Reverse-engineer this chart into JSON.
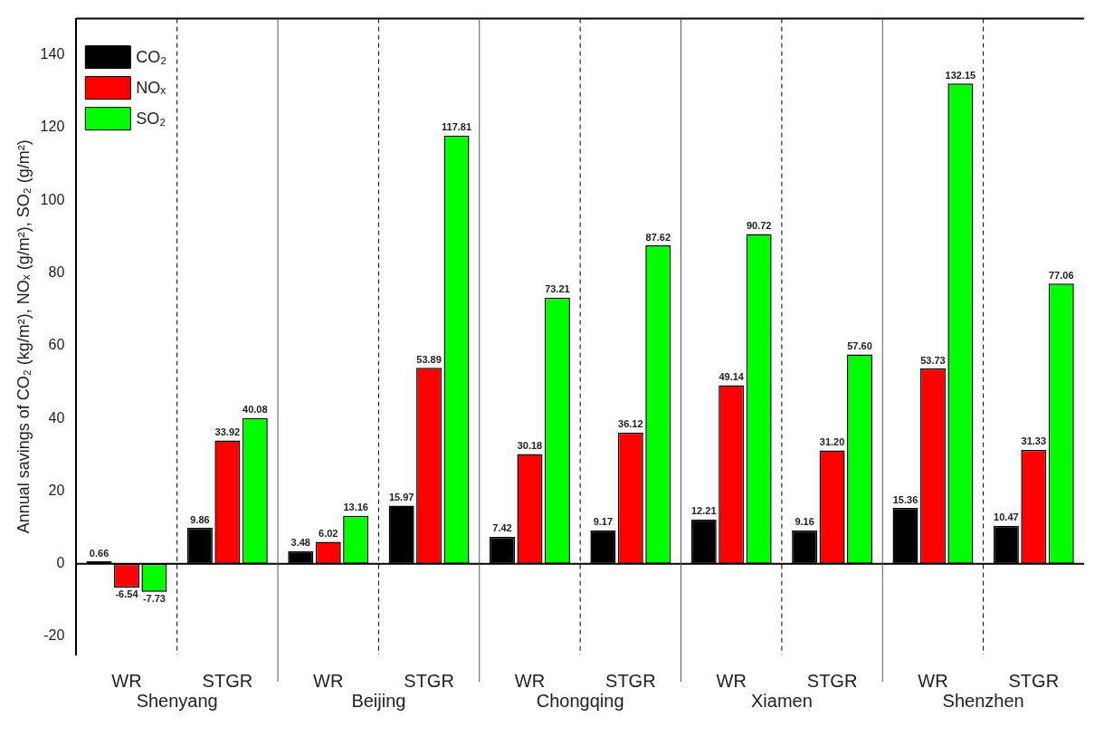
{
  "chart_data": {
    "type": "bar",
    "ylabel": "Annual savings of CO₂ (kg/m²), NOₓ (g/m²), SO₂ (g/m²)",
    "categories": [
      "WR",
      "STGR",
      "WR",
      "STGR",
      "WR",
      "STGR",
      "WR",
      "STGR",
      "WR",
      "STGR"
    ],
    "series": [
      {
        "name": "CO₂",
        "color": "#000000",
        "values": [
          0.66,
          9.86,
          3.48,
          15.97,
          7.42,
          9.17,
          12.21,
          9.16,
          15.36,
          10.47
        ],
        "value_labels": [
          "0.66",
          "9.86",
          "3.48",
          "15.97",
          "7.42",
          "9.17",
          "12.21",
          "9.16",
          "15.36",
          "10.47"
        ]
      },
      {
        "name": "NOₓ",
        "color": "#ff0000",
        "values": [
          -6.54,
          33.92,
          6.02,
          53.89,
          30.18,
          36.12,
          49.14,
          31.2,
          53.73,
          31.33
        ],
        "value_labels": [
          "-6.54",
          "33.92",
          "6.02",
          "53.89",
          "30.18",
          "36.12",
          "49.14",
          "31.20",
          "53.73",
          "31.33"
        ]
      },
      {
        "name": "SO₂",
        "color": "#00ff00",
        "values": [
          -7.73,
          40.08,
          13.16,
          117.81,
          73.21,
          87.62,
          90.72,
          57.6,
          132.15,
          77.06
        ],
        "value_labels": [
          "-7.73",
          "40.08",
          "13.16",
          "117.81",
          "73.21",
          "87.62",
          "90.72",
          "57.60",
          "132.15",
          "77.06"
        ]
      }
    ],
    "annotations": [
      "Shenyang",
      "Beijing",
      "Chongqing",
      "Xiamen",
      "Shenzhen"
    ],
    "ylim": [
      -25,
      150
    ],
    "yticks": [
      -20,
      0,
      20,
      40,
      60,
      80,
      100,
      120,
      140
    ],
    "grid": "x",
    "legend": "top left"
  }
}
